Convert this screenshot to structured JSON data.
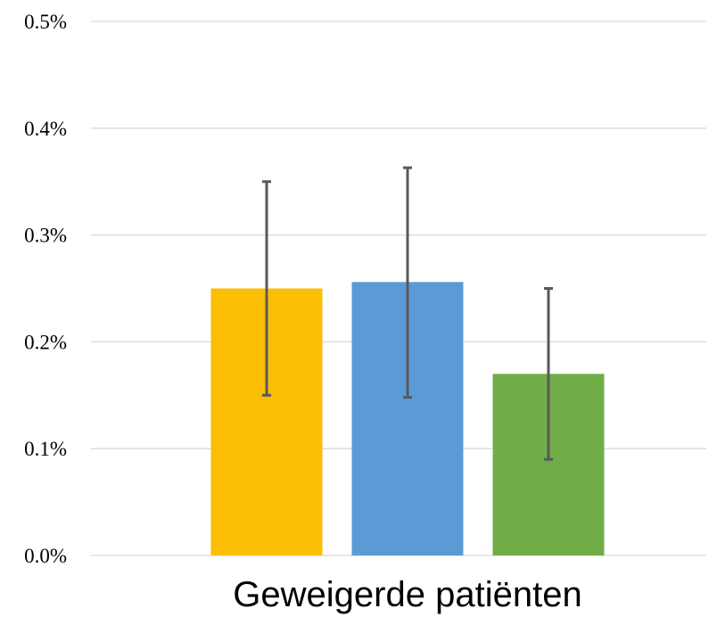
{
  "chart_data": {
    "type": "bar",
    "categories": [
      "Geweigerde patiënten"
    ],
    "series": [
      {
        "values": [
          0.25
        ],
        "error_low": [
          0.15
        ],
        "error_high": [
          0.35
        ],
        "color": "#FBBE05"
      },
      {
        "values": [
          0.256
        ],
        "error_low": [
          0.148
        ],
        "error_high": [
          0.363
        ],
        "color": "#5B9BD5"
      },
      {
        "values": [
          0.17
        ],
        "error_low": [
          0.09
        ],
        "error_high": [
          0.25
        ],
        "color": "#70AD47"
      }
    ],
    "yticks": [
      "0.0%",
      "0.1%",
      "0.2%",
      "0.3%",
      "0.4%",
      "0.5%"
    ],
    "ylim": [
      0,
      0.5
    ],
    "yunit": "%",
    "grid": true,
    "error_bar_color": "#595959"
  }
}
